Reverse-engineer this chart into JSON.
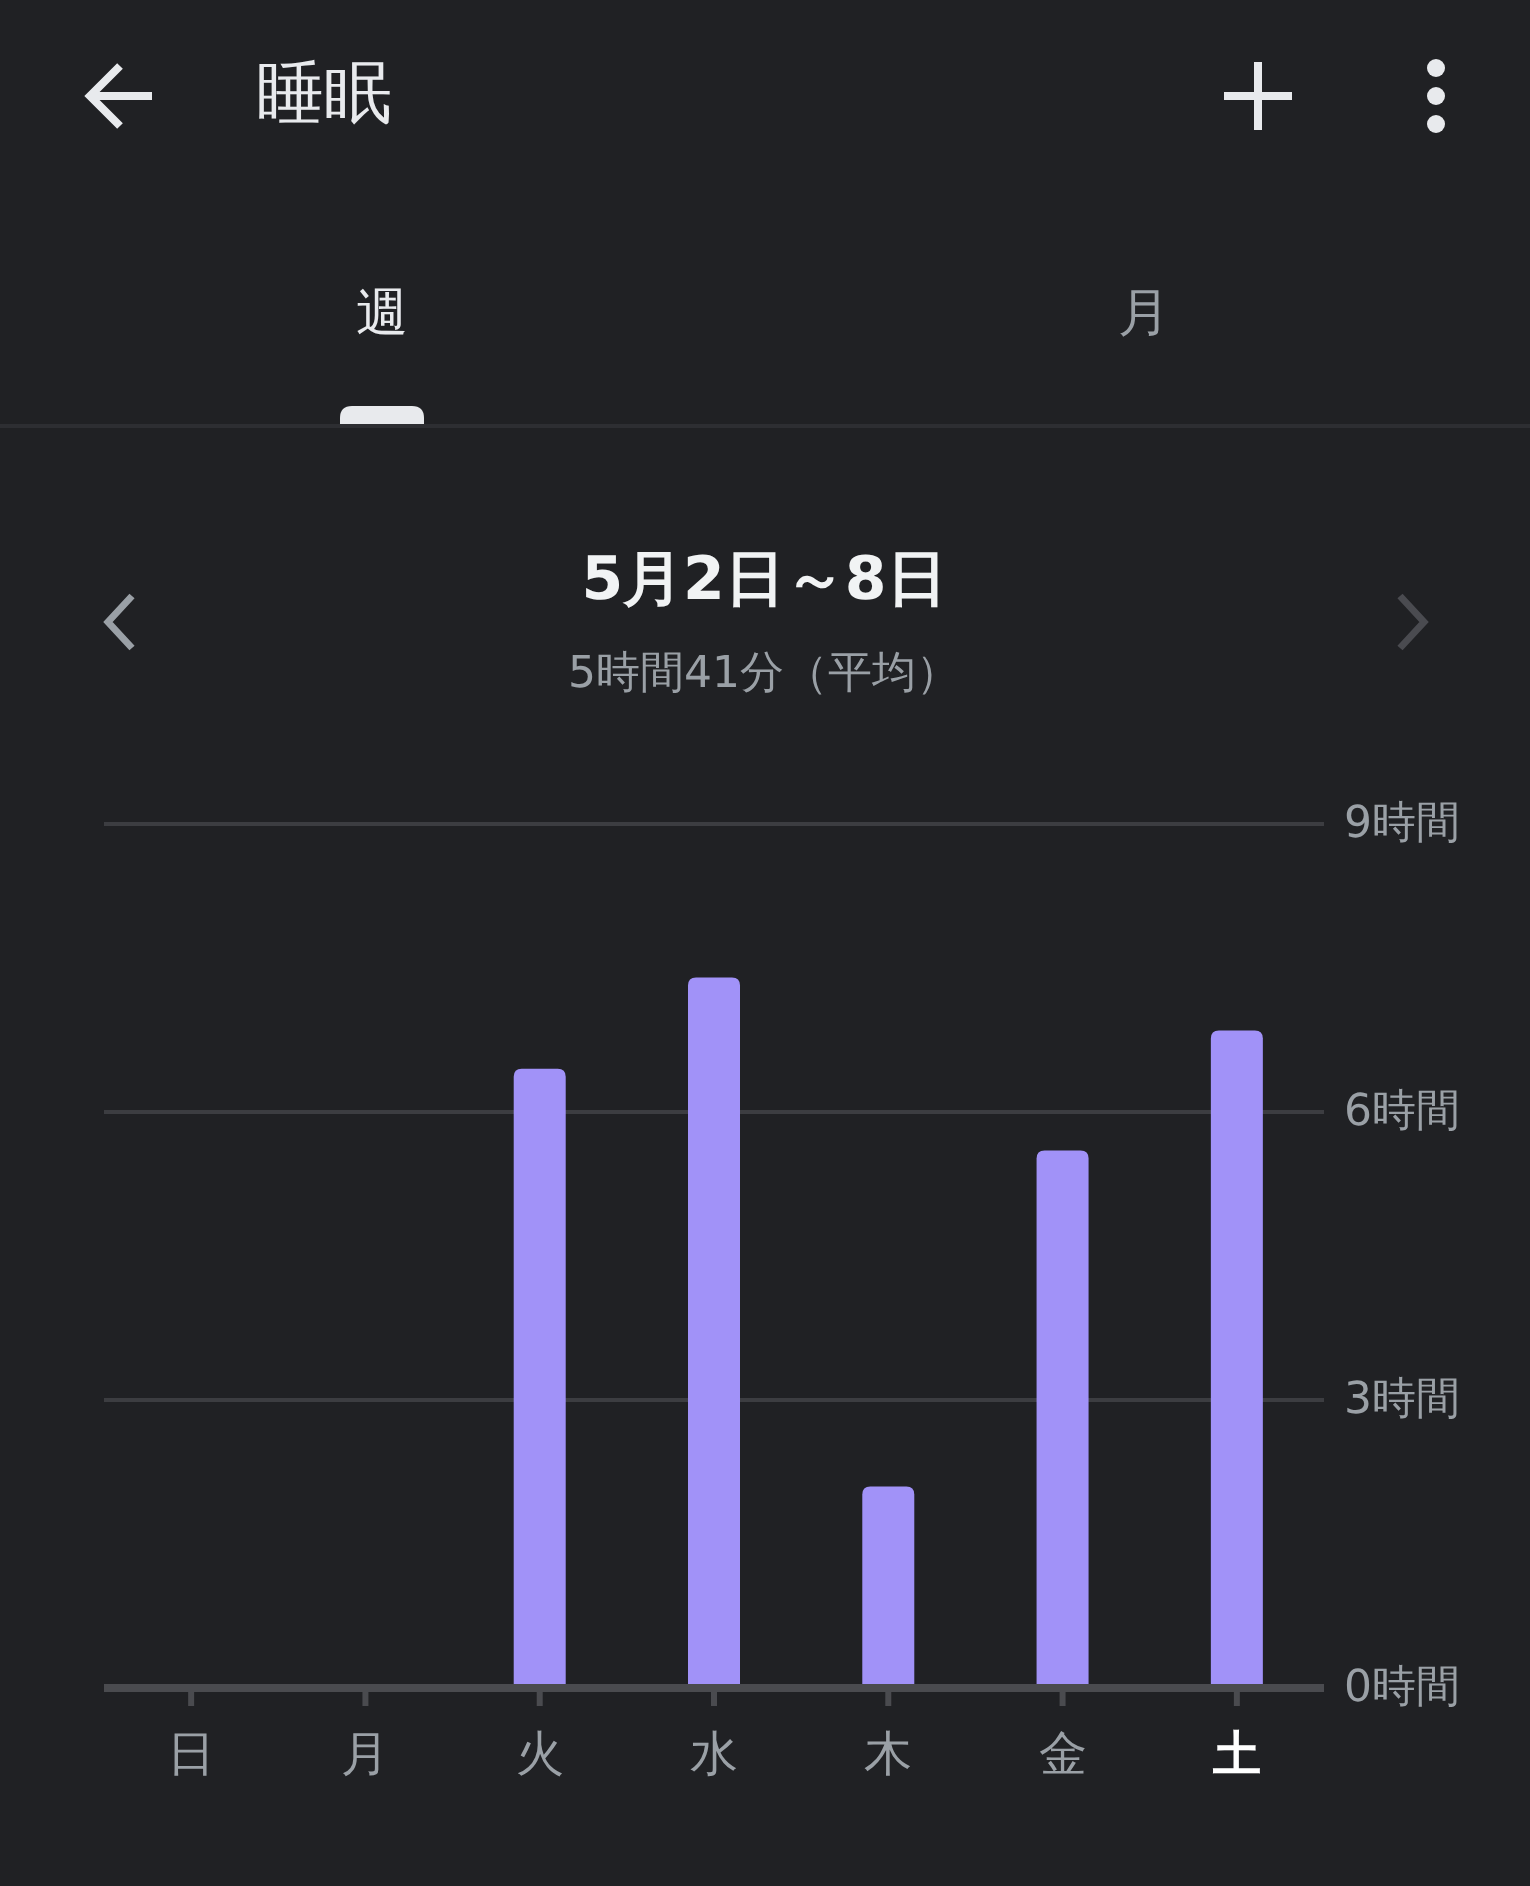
{
  "chart_data": {
    "type": "bar",
    "title": "5月2日～8日",
    "subtitle": "5時間41分（平均）",
    "annotations": [
      "睡眠",
      "週",
      "月"
    ],
    "categories": [
      "日",
      "月",
      "火",
      "水",
      "木",
      "金",
      "土"
    ],
    "values": [
      null,
      null,
      6.45,
      7.4,
      2.1,
      5.6,
      6.85
    ],
    "color": "#a192f8",
    "ylim": [
      0,
      9
    ],
    "yticks": [
      {
        "value": 0,
        "label": "0時間"
      },
      {
        "value": 3,
        "label": "3時間"
      },
      {
        "value": 6,
        "label": "6時間"
      },
      {
        "value": 9,
        "label": "9時間"
      }
    ],
    "grid": "y"
  }
}
